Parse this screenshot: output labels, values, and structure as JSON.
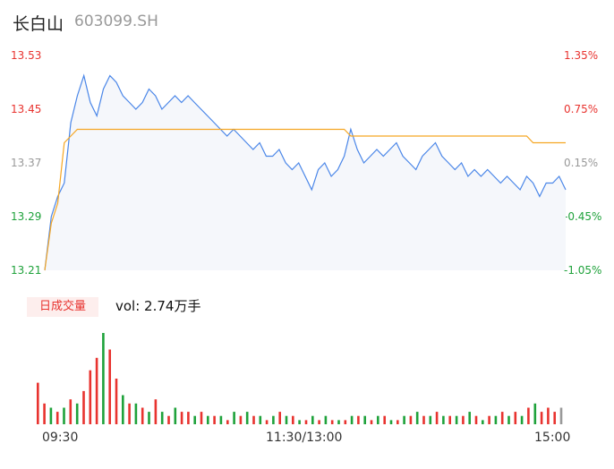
{
  "header": {
    "name": "长白山",
    "code": "603099.SH"
  },
  "volume_panel": {
    "badge": "日成交量",
    "vol_text": "vol: 2.74万手"
  },
  "colors": {
    "price": "#4a86e8",
    "avg": "#f5a623",
    "up": "#e8332f",
    "down": "#1fa23b",
    "neutral": "#999999",
    "fill": "#f5f7fb"
  },
  "chart_data": [
    {
      "type": "line",
      "name": "intraday",
      "y_ticks_left": [
        "13.53",
        "13.45",
        "13.37",
        "13.29",
        "13.21"
      ],
      "y_ticks_right": [
        "1.35%",
        "0.75%",
        "0.15%",
        "-0.45%",
        "-1.05%"
      ],
      "tick_values": [
        13.53,
        13.45,
        13.37,
        13.29,
        13.21
      ],
      "ylim": [
        13.21,
        13.53
      ],
      "prev_close": 13.35,
      "x_ticks": [
        "09:30",
        "11:30/13:00",
        "15:00"
      ],
      "series": [
        {
          "role": "price",
          "values": [
            13.21,
            13.29,
            13.32,
            13.34,
            13.43,
            13.47,
            13.5,
            13.46,
            13.44,
            13.48,
            13.5,
            13.49,
            13.47,
            13.46,
            13.45,
            13.46,
            13.48,
            13.47,
            13.45,
            13.46,
            13.47,
            13.46,
            13.47,
            13.46,
            13.45,
            13.44,
            13.43,
            13.42,
            13.41,
            13.42,
            13.41,
            13.4,
            13.39,
            13.4,
            13.38,
            13.38,
            13.39,
            13.37,
            13.36,
            13.37,
            13.35,
            13.33,
            13.36,
            13.37,
            13.35,
            13.36,
            13.38,
            13.42,
            13.39,
            13.37,
            13.38,
            13.39,
            13.38,
            13.39,
            13.4,
            13.38,
            13.37,
            13.36,
            13.38,
            13.39,
            13.4,
            13.38,
            13.37,
            13.36,
            13.37,
            13.35,
            13.36,
            13.35,
            13.36,
            13.35,
            13.34,
            13.35,
            13.34,
            13.33,
            13.35,
            13.34,
            13.32,
            13.34,
            13.34,
            13.35,
            13.33
          ]
        },
        {
          "role": "avg",
          "values": [
            13.21,
            13.28,
            13.31,
            13.4,
            13.41,
            13.42,
            13.42,
            13.42,
            13.42,
            13.42,
            13.42,
            13.42,
            13.42,
            13.42,
            13.42,
            13.42,
            13.42,
            13.42,
            13.42,
            13.42,
            13.42,
            13.42,
            13.42,
            13.42,
            13.42,
            13.42,
            13.42,
            13.42,
            13.42,
            13.42,
            13.42,
            13.42,
            13.42,
            13.42,
            13.42,
            13.42,
            13.42,
            13.42,
            13.42,
            13.42,
            13.42,
            13.42,
            13.42,
            13.42,
            13.42,
            13.42,
            13.42,
            13.41,
            13.41,
            13.41,
            13.41,
            13.41,
            13.41,
            13.41,
            13.41,
            13.41,
            13.41,
            13.41,
            13.41,
            13.41,
            13.41,
            13.41,
            13.41,
            13.41,
            13.41,
            13.41,
            13.41,
            13.41,
            13.41,
            13.41,
            13.41,
            13.41,
            13.41,
            13.41,
            13.41,
            13.4,
            13.4,
            13.4,
            13.4,
            13.4,
            13.4
          ]
        }
      ]
    },
    {
      "type": "bar",
      "name": "volume",
      "values": [
        10,
        5,
        4,
        3,
        4,
        6,
        5,
        8,
        13,
        16,
        22,
        18,
        11,
        7,
        5,
        5,
        4,
        3,
        6,
        3,
        2,
        4,
        3,
        3,
        2,
        3,
        2,
        2,
        2,
        1,
        3,
        2,
        3,
        2,
        2,
        1,
        2,
        3,
        2,
        2,
        1,
        1,
        2,
        1,
        2,
        1,
        1,
        1,
        2,
        2,
        2,
        1,
        2,
        2,
        1,
        1,
        2,
        2,
        3,
        2,
        2,
        3,
        2,
        2,
        2,
        2,
        3,
        2,
        1,
        2,
        2,
        3,
        2,
        3,
        2,
        4,
        5,
        3,
        4,
        3,
        4
      ],
      "colors": [
        "up",
        "up",
        "down",
        "up",
        "down",
        "up",
        "down",
        "up",
        "up",
        "up",
        "down",
        "up",
        "up",
        "down",
        "up",
        "down",
        "up",
        "down",
        "up",
        "down",
        "up",
        "down",
        "up",
        "up",
        "down",
        "up",
        "down",
        "up",
        "down",
        "up",
        "down",
        "up",
        "down",
        "up",
        "down",
        "up",
        "down",
        "up",
        "down",
        "up",
        "down",
        "up",
        "down",
        "up",
        "down",
        "up",
        "down",
        "up",
        "down",
        "up",
        "down",
        "up",
        "down",
        "up",
        "down",
        "up",
        "down",
        "up",
        "down",
        "up",
        "down",
        "up",
        "down",
        "up",
        "down",
        "up",
        "down",
        "up",
        "down",
        "up",
        "down",
        "up",
        "down",
        "up",
        "down",
        "up",
        "down",
        "up",
        "up",
        "up",
        "neutral"
      ]
    }
  ]
}
